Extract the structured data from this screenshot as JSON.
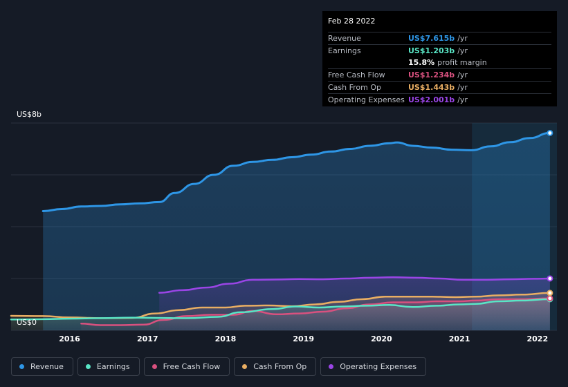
{
  "colors": {
    "revenue": "#2e96e6",
    "earnings": "#59e6c6",
    "fcf": "#d9517f",
    "cfo": "#e9ae63",
    "opex": "#9a45e6",
    "grid": "#2a313d",
    "axis_text": "#ffffff"
  },
  "tooltip": {
    "date": "Feb 28 2022",
    "rows": [
      {
        "label": "Revenue",
        "value": "US$7.615b",
        "unit": "/yr",
        "color": "#2e96e6"
      },
      {
        "label": "Earnings",
        "value": "US$1.203b",
        "unit": "/yr",
        "color": "#59e6c6"
      },
      {
        "label": "",
        "value": "15.8%",
        "unit": "profit margin",
        "color": "#ffffff"
      },
      {
        "label": "Free Cash Flow",
        "value": "US$1.234b",
        "unit": "/yr",
        "color": "#d9517f"
      },
      {
        "label": "Cash From Op",
        "value": "US$1.443b",
        "unit": "/yr",
        "color": "#e9ae63"
      },
      {
        "label": "Operating Expenses",
        "value": "US$2.001b",
        "unit": "/yr",
        "color": "#9a45e6"
      }
    ]
  },
  "legend": [
    {
      "label": "Revenue",
      "color": "#2e96e6"
    },
    {
      "label": "Earnings",
      "color": "#59e6c6"
    },
    {
      "label": "Free Cash Flow",
      "color": "#d9517f"
    },
    {
      "label": "Cash From Op",
      "color": "#e9ae63"
    },
    {
      "label": "Operating Expenses",
      "color": "#9a45e6"
    }
  ],
  "chart_data": {
    "type": "area",
    "y_unit": "US$ billions",
    "ylim": [
      0,
      8
    ],
    "y_top_label": "US$8b",
    "y_bottom_label": "US$0",
    "x_ticks": [
      {
        "label": "2016",
        "x": 2016.0
      },
      {
        "label": "2017",
        "x": 2017.0
      },
      {
        "label": "2018",
        "x": 2018.0
      },
      {
        "label": "2019",
        "x": 2019.0
      },
      {
        "label": "2020",
        "x": 2020.0
      },
      {
        "label": "2021",
        "x": 2021.0
      },
      {
        "label": "2022",
        "x": 2022.0
      }
    ],
    "xlim": [
      2015.25,
      2022.25
    ],
    "highlight_start": 2021.16,
    "series": [
      {
        "name": "Revenue",
        "key": "revenue",
        "points": [
          [
            2015.66,
            4.6
          ],
          [
            2015.9,
            4.68
          ],
          [
            2016.15,
            4.78
          ],
          [
            2016.4,
            4.8
          ],
          [
            2016.65,
            4.86
          ],
          [
            2016.9,
            4.9
          ],
          [
            2017.15,
            4.95
          ],
          [
            2017.35,
            5.3
          ],
          [
            2017.6,
            5.65
          ],
          [
            2017.85,
            6.0
          ],
          [
            2018.1,
            6.35
          ],
          [
            2018.35,
            6.5
          ],
          [
            2018.6,
            6.58
          ],
          [
            2018.85,
            6.68
          ],
          [
            2019.1,
            6.78
          ],
          [
            2019.35,
            6.9
          ],
          [
            2019.6,
            7.0
          ],
          [
            2019.85,
            7.12
          ],
          [
            2020.1,
            7.22
          ],
          [
            2020.2,
            7.25
          ],
          [
            2020.4,
            7.12
          ],
          [
            2020.65,
            7.05
          ],
          [
            2020.9,
            6.97
          ],
          [
            2021.15,
            6.95
          ],
          [
            2021.4,
            7.1
          ],
          [
            2021.65,
            7.26
          ],
          [
            2021.9,
            7.42
          ],
          [
            2022.16,
            7.615
          ]
        ]
      },
      {
        "name": "Earnings",
        "key": "earnings",
        "points": [
          [
            2015.25,
            0.42
          ],
          [
            2015.66,
            0.43
          ],
          [
            2016.0,
            0.45
          ],
          [
            2016.4,
            0.47
          ],
          [
            2016.8,
            0.49
          ],
          [
            2017.1,
            0.48
          ],
          [
            2017.5,
            0.47
          ],
          [
            2017.9,
            0.52
          ],
          [
            2018.2,
            0.7
          ],
          [
            2018.6,
            0.82
          ],
          [
            2018.9,
            0.92
          ],
          [
            2019.2,
            0.88
          ],
          [
            2019.5,
            0.92
          ],
          [
            2019.8,
            0.95
          ],
          [
            2020.1,
            0.98
          ],
          [
            2020.4,
            0.9
          ],
          [
            2020.7,
            0.95
          ],
          [
            2021.0,
            1.0
          ],
          [
            2021.2,
            1.02
          ],
          [
            2021.5,
            1.12
          ],
          [
            2021.8,
            1.15
          ],
          [
            2022.16,
            1.203
          ]
        ]
      },
      {
        "name": "Free Cash Flow",
        "key": "fcf",
        "points": [
          [
            2016.15,
            0.26
          ],
          [
            2016.4,
            0.2
          ],
          [
            2016.65,
            0.2
          ],
          [
            2016.95,
            0.22
          ],
          [
            2017.2,
            0.4
          ],
          [
            2017.5,
            0.55
          ],
          [
            2017.8,
            0.6
          ],
          [
            2018.1,
            0.6
          ],
          [
            2018.35,
            0.75
          ],
          [
            2018.65,
            0.62
          ],
          [
            2018.95,
            0.65
          ],
          [
            2019.25,
            0.72
          ],
          [
            2019.55,
            0.85
          ],
          [
            2019.85,
            1.0
          ],
          [
            2020.15,
            1.08
          ],
          [
            2020.45,
            1.08
          ],
          [
            2020.7,
            1.12
          ],
          [
            2021.0,
            1.12
          ],
          [
            2021.2,
            1.15
          ],
          [
            2021.5,
            1.2
          ],
          [
            2021.8,
            1.2
          ],
          [
            2022.16,
            1.234
          ]
        ]
      },
      {
        "name": "Cash From Op",
        "key": "cfo",
        "points": [
          [
            2015.25,
            0.56
          ],
          [
            2015.66,
            0.55
          ],
          [
            2016.0,
            0.5
          ],
          [
            2016.4,
            0.47
          ],
          [
            2016.8,
            0.48
          ],
          [
            2017.1,
            0.65
          ],
          [
            2017.4,
            0.78
          ],
          [
            2017.7,
            0.88
          ],
          [
            2018.0,
            0.88
          ],
          [
            2018.25,
            0.95
          ],
          [
            2018.55,
            0.96
          ],
          [
            2018.85,
            0.93
          ],
          [
            2019.15,
            1.0
          ],
          [
            2019.45,
            1.1
          ],
          [
            2019.75,
            1.2
          ],
          [
            2020.05,
            1.3
          ],
          [
            2020.35,
            1.3
          ],
          [
            2020.65,
            1.3
          ],
          [
            2020.95,
            1.28
          ],
          [
            2021.2,
            1.3
          ],
          [
            2021.5,
            1.35
          ],
          [
            2021.8,
            1.38
          ],
          [
            2022.16,
            1.443
          ]
        ]
      },
      {
        "name": "Operating Expenses",
        "key": "opex",
        "points": [
          [
            2017.15,
            1.45
          ],
          [
            2017.45,
            1.55
          ],
          [
            2017.75,
            1.65
          ],
          [
            2018.05,
            1.8
          ],
          [
            2018.35,
            1.95
          ],
          [
            2018.65,
            1.96
          ],
          [
            2018.95,
            1.98
          ],
          [
            2019.25,
            1.97
          ],
          [
            2019.55,
            2.0
          ],
          [
            2019.85,
            2.03
          ],
          [
            2020.15,
            2.05
          ],
          [
            2020.45,
            2.03
          ],
          [
            2020.75,
            2.0
          ],
          [
            2021.05,
            1.95
          ],
          [
            2021.35,
            1.95
          ],
          [
            2021.65,
            1.97
          ],
          [
            2021.95,
            1.99
          ],
          [
            2022.16,
            2.001
          ]
        ]
      }
    ]
  }
}
